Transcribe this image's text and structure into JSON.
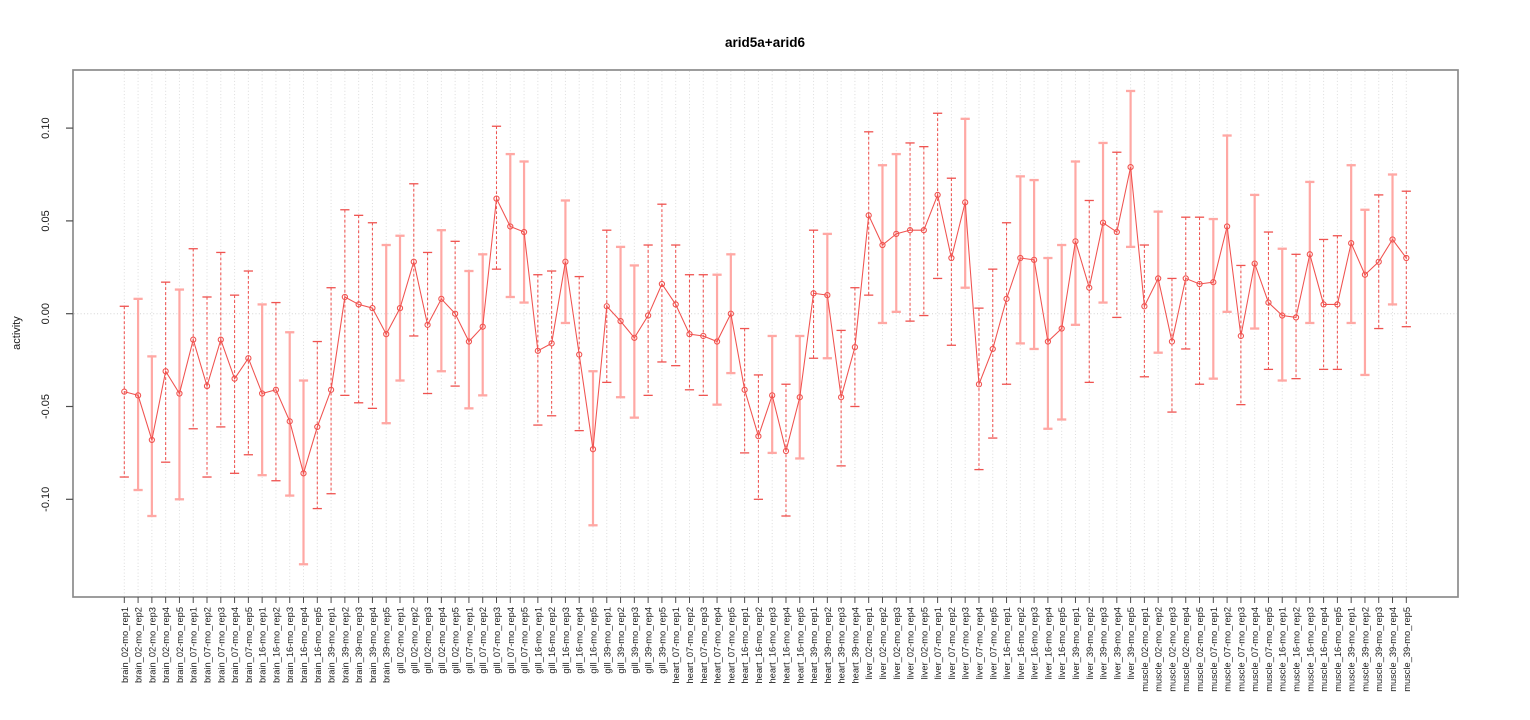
{
  "title": "arid5a+arid6",
  "colors": {
    "point_line_red": "#f0524f",
    "ci_dashed_red": "#ef5350",
    "ci_solid_salmon": "#ffa8a4",
    "gridline_gray": "#dcdcdc",
    "zero_line_gray": "#d4d4d4",
    "box_border_gray": "#8c8c8c",
    "tick_gray": "#4d4d4d",
    "label_text": "#1a1a1a"
  },
  "chart_data": {
    "type": "line",
    "title": "arid5a+arid6",
    "xlabel": "",
    "ylabel": "activity",
    "marker": "open-circle",
    "connected": true,
    "legend": "none",
    "grid": "vertical dotted line per category; dotted horizontal line at 0",
    "y_ticks": [
      0.1,
      0.05,
      0.0,
      -0.05,
      -0.1
    ],
    "y_tick_labels": [
      "0.10",
      "0.05",
      "0.00",
      "-0.05",
      "-0.10"
    ],
    "ylim": [
      -0.152,
      0.131
    ],
    "categories": [
      "brain_02-mo_rep1",
      "brain_02-mo_rep2",
      "brain_02-mo_rep3",
      "brain_02-mo_rep4",
      "brain_02-mo_rep5",
      "brain_07-mo_rep1",
      "brain_07-mo_rep2",
      "brain_07-mo_rep3",
      "brain_07-mo_rep4",
      "brain_07-mo_rep5",
      "brain_16-mo_rep1",
      "brain_16-mo_rep2",
      "brain_16-mo_rep3",
      "brain_16-mo_rep4",
      "brain_16-mo_rep5",
      "brain_39-mo_rep1",
      "brain_39-mo_rep2",
      "brain_39-mo_rep3",
      "brain_39-mo_rep4",
      "brain_39-mo_rep5",
      "gill_02-mo_rep1",
      "gill_02-mo_rep2",
      "gill_02-mo_rep3",
      "gill_02-mo_rep4",
      "gill_02-mo_rep5",
      "gill_07-mo_rep1",
      "gill_07-mo_rep2",
      "gill_07-mo_rep3",
      "gill_07-mo_rep4",
      "gill_07-mo_rep5",
      "gill_16-mo_rep1",
      "gill_16-mo_rep2",
      "gill_16-mo_rep3",
      "gill_16-mo_rep4",
      "gill_16-mo_rep5",
      "gill_39-mo_rep1",
      "gill_39-mo_rep2",
      "gill_39-mo_rep3",
      "gill_39-mo_rep4",
      "gill_39-mo_rep5",
      "heart_07-mo_rep1",
      "heart_07-mo_rep2",
      "heart_07-mo_rep3",
      "heart_07-mo_rep4",
      "heart_07-mo_rep5",
      "heart_16-mo_rep1",
      "heart_16-mo_rep2",
      "heart_16-mo_rep3",
      "heart_16-mo_rep4",
      "heart_16-mo_rep5",
      "heart_39-mo_rep1",
      "heart_39-mo_rep2",
      "heart_39-mo_rep3",
      "heart_39-mo_rep4",
      "liver_02-mo_rep1",
      "liver_02-mo_rep2",
      "liver_02-mo_rep3",
      "liver_02-mo_rep4",
      "liver_02-mo_rep5",
      "liver_07-mo_rep1",
      "liver_07-mo_rep2",
      "liver_07-mo_rep3",
      "liver_07-mo_rep4",
      "liver_07-mo_rep5",
      "liver_16-mo_rep1",
      "liver_16-mo_rep2",
      "liver_16-mo_rep3",
      "liver_16-mo_rep4",
      "liver_16-mo_rep5",
      "liver_39-mo_rep1",
      "liver_39-mo_rep2",
      "liver_39-mo_rep3",
      "liver_39-mo_rep4",
      "liver_39-mo_rep5",
      "muscle_02-mo_rep1",
      "muscle_02-mo_rep2",
      "muscle_02-mo_rep3",
      "muscle_02-mo_rep4",
      "muscle_02-mo_rep5",
      "muscle_07-mo_rep1",
      "muscle_07-mo_rep2",
      "muscle_07-mo_rep3",
      "muscle_07-mo_rep4",
      "muscle_07-mo_rep5",
      "muscle_16-mo_rep1",
      "muscle_16-mo_rep2",
      "muscle_16-mo_rep3",
      "muscle_16-mo_rep4",
      "muscle_16-mo_rep5",
      "muscle_39-mo_rep1",
      "muscle_39-mo_rep2",
      "muscle_39-mo_rep3",
      "muscle_39-mo_rep4",
      "muscle_39-mo_rep5"
    ],
    "values": [
      -0.042,
      -0.044,
      -0.068,
      -0.031,
      -0.043,
      -0.014,
      -0.039,
      -0.014,
      -0.035,
      -0.024,
      -0.043,
      -0.041,
      -0.058,
      -0.086,
      -0.061,
      -0.041,
      0.009,
      0.005,
      0.003,
      -0.011,
      0.003,
      0.028,
      -0.006,
      0.008,
      0.0,
      -0.015,
      -0.007,
      0.062,
      0.047,
      0.044,
      -0.02,
      -0.016,
      0.028,
      -0.022,
      -0.073,
      0.004,
      -0.004,
      -0.013,
      -0.001,
      0.016,
      0.005,
      -0.011,
      -0.012,
      -0.015,
      0.0,
      -0.041,
      -0.066,
      -0.044,
      -0.074,
      -0.045,
      0.011,
      0.01,
      -0.045,
      -0.018,
      0.053,
      0.037,
      0.043,
      0.045,
      0.045,
      0.064,
      0.03,
      0.06,
      -0.038,
      -0.019,
      0.008,
      0.03,
      0.029,
      -0.015,
      -0.008,
      0.039,
      0.014,
      0.049,
      0.044,
      0.079,
      0.004,
      0.019,
      -0.015,
      0.019,
      0.016,
      0.017,
      0.047,
      -0.012,
      0.027,
      0.006,
      -0.001,
      -0.002,
      0.032,
      0.005,
      0.005,
      0.038,
      0.021,
      0.028,
      0.04,
      0.03
    ],
    "ci_lower": [
      -0.088,
      -0.095,
      -0.109,
      -0.08,
      -0.1,
      -0.062,
      -0.088,
      -0.061,
      -0.086,
      -0.076,
      -0.087,
      -0.09,
      -0.098,
      -0.135,
      -0.105,
      -0.097,
      -0.044,
      -0.048,
      -0.051,
      -0.059,
      -0.036,
      -0.012,
      -0.043,
      -0.031,
      -0.039,
      -0.051,
      -0.044,
      0.024,
      0.009,
      0.006,
      -0.06,
      -0.055,
      -0.005,
      -0.063,
      -0.114,
      -0.037,
      -0.045,
      -0.056,
      -0.044,
      -0.026,
      -0.028,
      -0.041,
      -0.044,
      -0.049,
      -0.032,
      -0.075,
      -0.1,
      -0.075,
      -0.109,
      -0.078,
      -0.024,
      -0.024,
      -0.082,
      -0.05,
      0.01,
      -0.005,
      0.001,
      -0.004,
      -0.001,
      0.019,
      -0.017,
      0.014,
      -0.084,
      -0.067,
      -0.038,
      -0.016,
      -0.019,
      -0.062,
      -0.057,
      -0.006,
      -0.037,
      0.006,
      -0.002,
      0.036,
      -0.034,
      -0.021,
      -0.053,
      -0.019,
      -0.038,
      -0.035,
      0.001,
      -0.049,
      -0.008,
      -0.03,
      -0.036,
      -0.035,
      -0.005,
      -0.03,
      -0.03,
      -0.005,
      -0.033,
      -0.008,
      0.005,
      -0.007
    ],
    "ci_upper": [
      0.004,
      0.008,
      -0.023,
      0.017,
      0.013,
      0.035,
      0.009,
      0.033,
      0.01,
      0.023,
      0.005,
      0.006,
      -0.01,
      -0.036,
      -0.015,
      0.014,
      0.056,
      0.053,
      0.049,
      0.037,
      0.042,
      0.07,
      0.033,
      0.045,
      0.039,
      0.023,
      0.032,
      0.101,
      0.086,
      0.082,
      0.021,
      0.023,
      0.061,
      0.02,
      -0.031,
      0.045,
      0.036,
      0.026,
      0.037,
      0.059,
      0.037,
      0.021,
      0.021,
      0.021,
      0.032,
      -0.008,
      -0.033,
      -0.012,
      -0.038,
      -0.012,
      0.045,
      0.043,
      -0.009,
      0.014,
      0.098,
      0.08,
      0.086,
      0.092,
      0.09,
      0.108,
      0.073,
      0.105,
      0.003,
      0.024,
      0.049,
      0.074,
      0.072,
      0.03,
      0.037,
      0.082,
      0.061,
      0.092,
      0.087,
      0.12,
      0.037,
      0.055,
      0.019,
      0.052,
      0.052,
      0.051,
      0.096,
      0.026,
      0.064,
      0.044,
      0.035,
      0.032,
      0.071,
      0.04,
      0.042,
      0.08,
      0.056,
      0.064,
      0.075,
      0.066
    ],
    "ci_styles": [
      "d",
      "s",
      "s",
      "d",
      "s",
      "d",
      "d",
      "d",
      "d",
      "d",
      "s",
      "d",
      "s",
      "s",
      "d",
      "d",
      "d",
      "d",
      "d",
      "s",
      "s",
      "d",
      "d",
      "s",
      "d",
      "s",
      "s",
      "d",
      "s",
      "s",
      "d",
      "d",
      "s",
      "d",
      "s",
      "d",
      "s",
      "s",
      "d",
      "d",
      "d",
      "d",
      "d",
      "s",
      "s",
      "d",
      "d",
      "s",
      "d",
      "s",
      "d",
      "s",
      "d",
      "d",
      "d",
      "s",
      "s",
      "d",
      "d",
      "d",
      "d",
      "s",
      "d",
      "d",
      "d",
      "s",
      "s",
      "s",
      "s",
      "s",
      "d",
      "s",
      "d",
      "s",
      "d",
      "s",
      "d",
      "d",
      "d",
      "s",
      "s",
      "d",
      "s",
      "d",
      "s",
      "d",
      "s",
      "d",
      "d",
      "s",
      "s",
      "d",
      "s",
      "d"
    ]
  }
}
